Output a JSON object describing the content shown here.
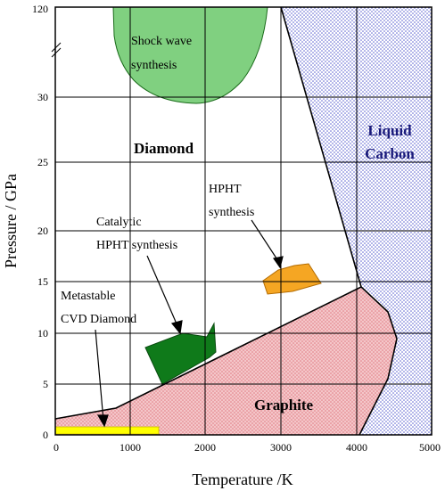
{
  "chart_data": {
    "type": "phase-diagram",
    "xlabel": "Temperature /K",
    "ylabel": "Pressure / GPa",
    "xticks": [
      "0",
      "1000",
      "2000",
      "3000",
      "4000",
      "5000"
    ],
    "yticks": [
      "0",
      "5",
      "10",
      "15",
      "20",
      "25",
      "30",
      "120"
    ],
    "xlim": [
      0,
      5000
    ],
    "grid": true,
    "region_labels": {
      "diamond": "Diamond",
      "graphite": "Graphite",
      "liquid_line1": "Liquid",
      "liquid_line2": "Carbon"
    },
    "annotations": {
      "shock_line1": "Shock wave",
      "shock_line2": "synthesis",
      "hpht_line1": "HPHT",
      "hpht_line2": "synthesis",
      "catalytic_line1": "Catalytic",
      "catalytic_line2": "HPHT synthesis",
      "cvd_line1": "Metastable",
      "cvd_line2": "CVD Diamond"
    },
    "colors": {
      "graphite_fill": "#f2b8bc",
      "liquid_fill": "#c9cbef",
      "shock_fill": "#7fcf7f",
      "hpht_fill": "#f5a623",
      "catalytic_fill": "#0f7a1a",
      "cvd_fill": "#ffff00"
    },
    "phase_boundaries": {
      "graphite_diamond": [
        [
          0,
          1.6
        ],
        [
          800,
          2.6
        ],
        [
          4100,
          14.4
        ]
      ],
      "liquid_boundary": [
        [
          3000,
          120
        ],
        [
          4100,
          14.4
        ],
        [
          4650,
          12
        ],
        [
          4050,
          0
        ]
      ]
    }
  }
}
